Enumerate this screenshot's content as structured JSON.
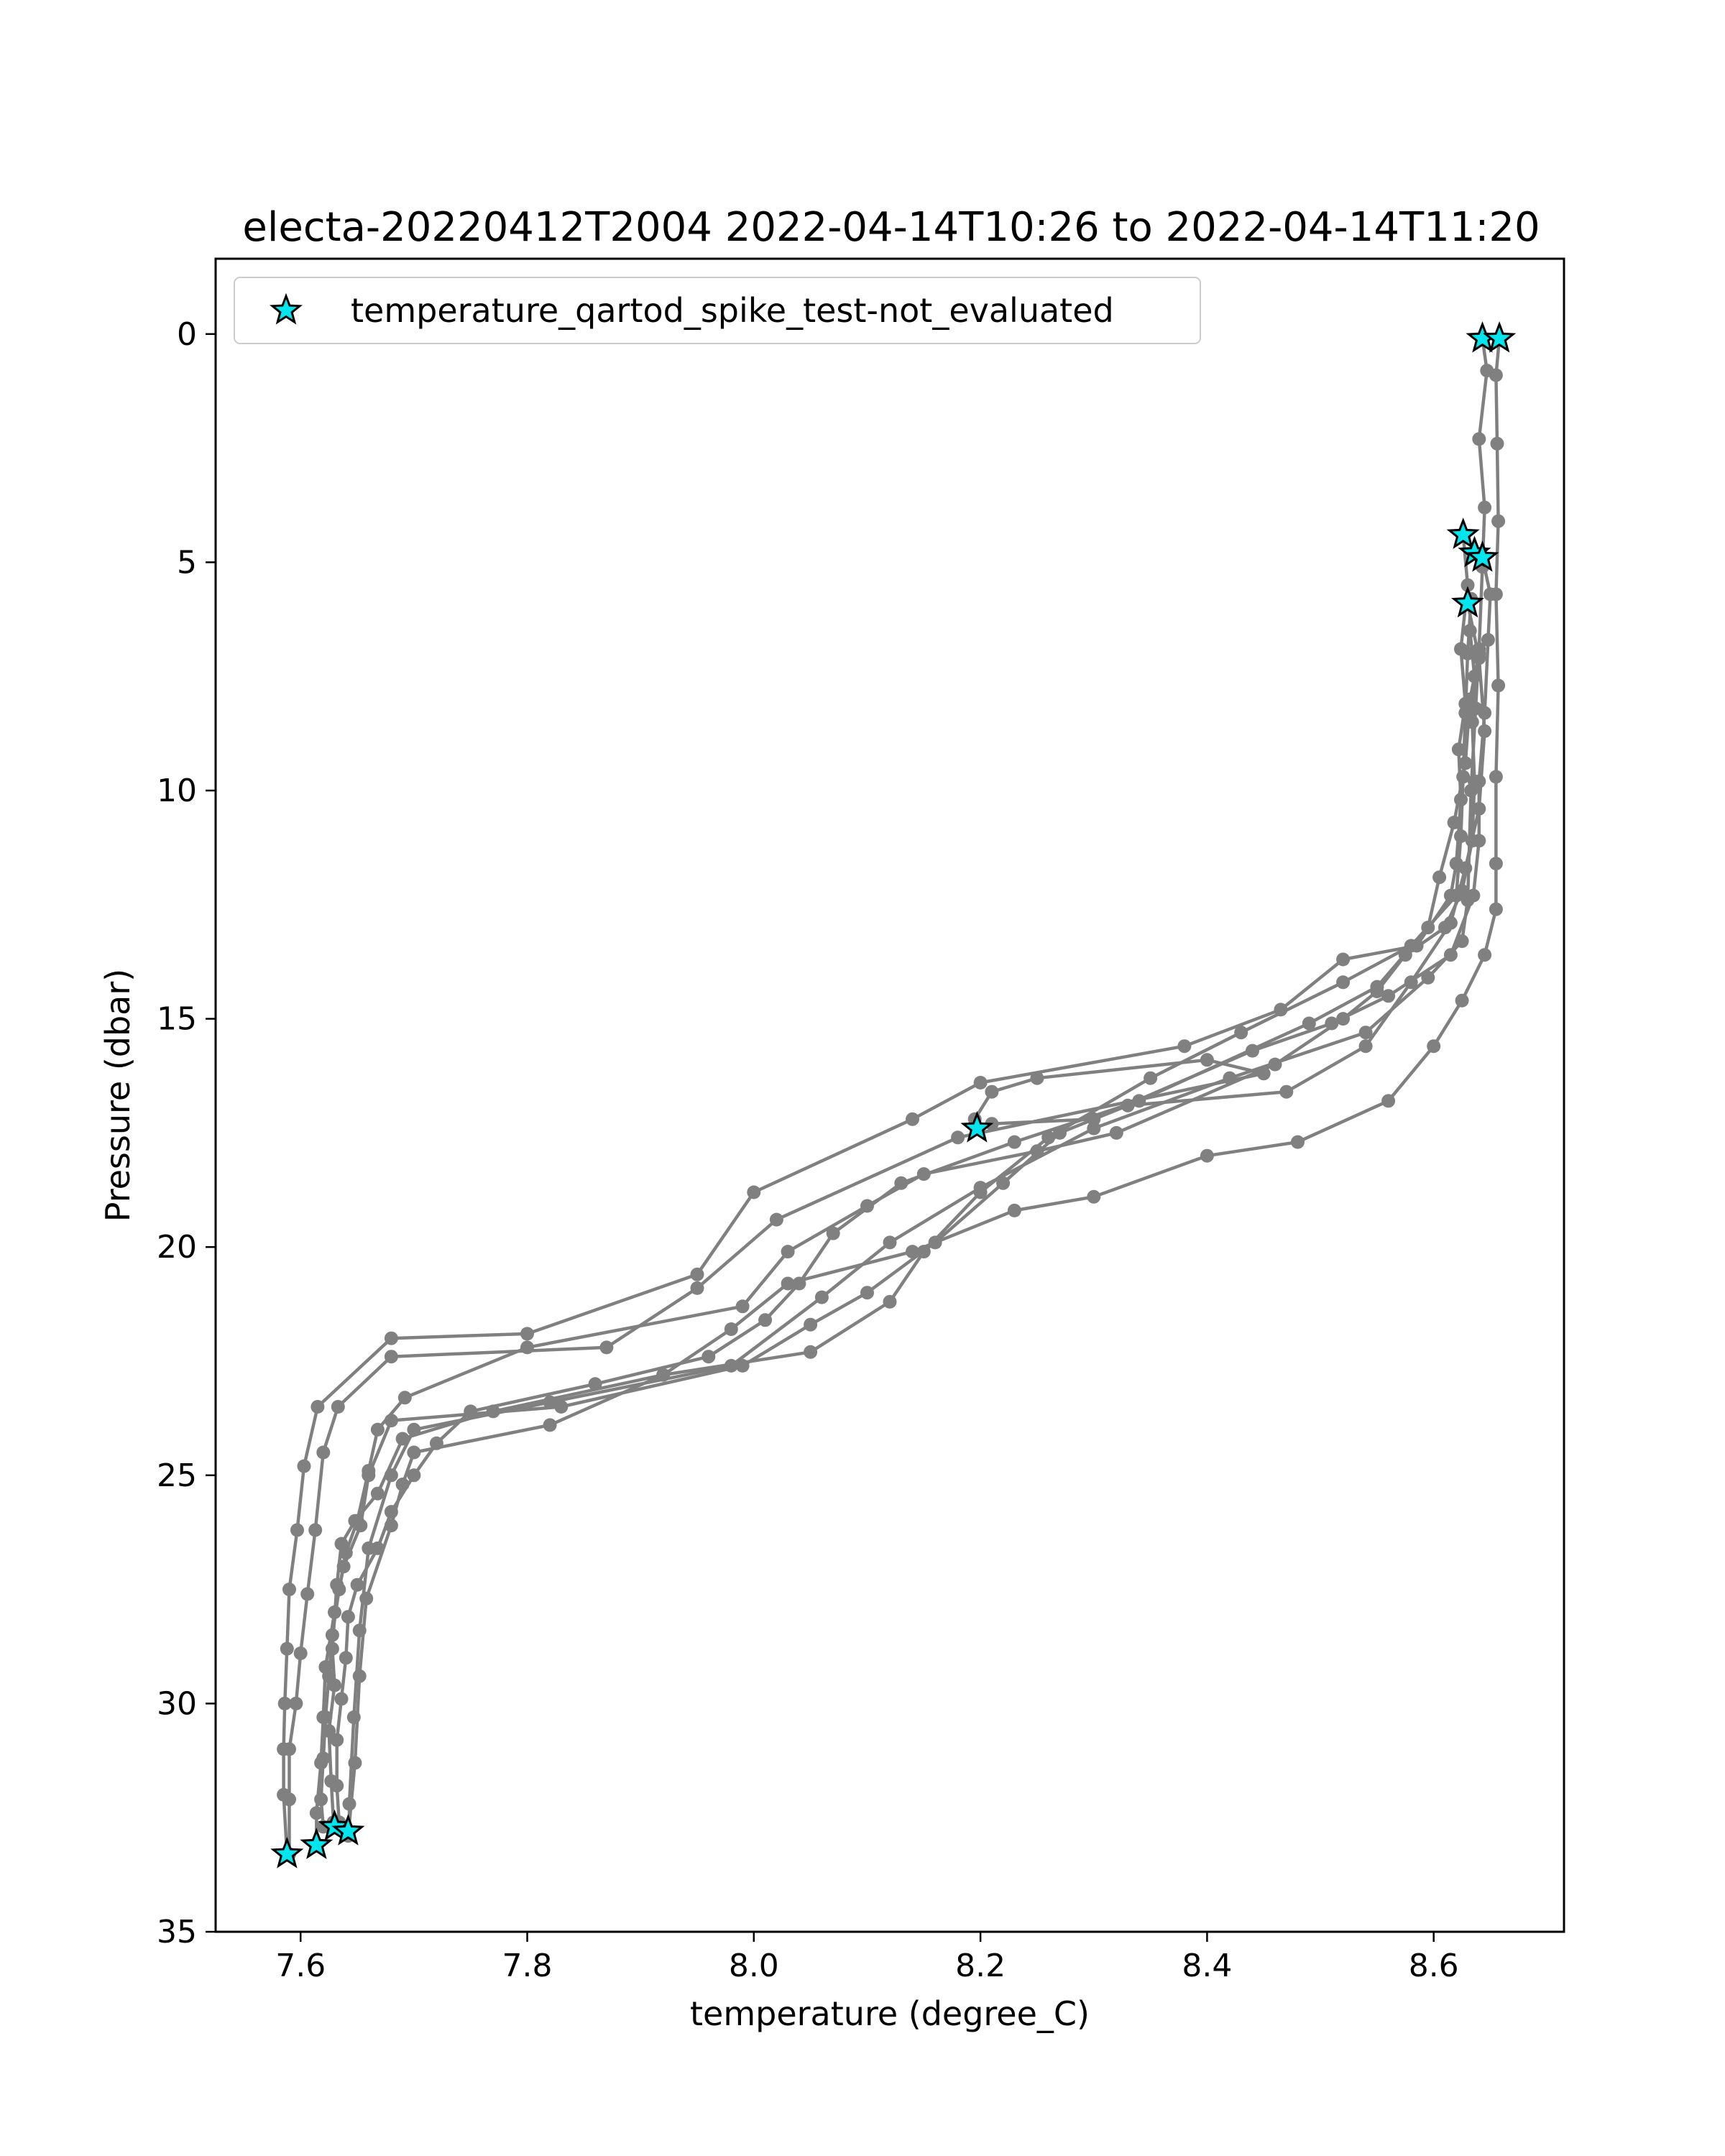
{
  "chart_data": {
    "type": "line",
    "title": "electa-20220412T2004 2022-04-14T10:26 to 2022-04-14T11:20",
    "xlabel": "temperature (degree_C)",
    "ylabel": "Pressure (dbar)",
    "xlim": [
      7.525,
      8.715
    ],
    "ylim": [
      35,
      -1.65
    ],
    "y_inverted": true,
    "grid": false,
    "legend_position": "upper left",
    "x_ticks": [
      7.6,
      7.8,
      8.0,
      8.2,
      8.4,
      8.6
    ],
    "x_tick_labels": [
      "7.6",
      "7.8",
      "8.0",
      "8.2",
      "8.4",
      "8.6"
    ],
    "y_ticks": [
      0,
      5,
      10,
      15,
      20,
      25,
      30,
      35
    ],
    "y_tick_labels": [
      "0",
      "5",
      "10",
      "15",
      "20",
      "25",
      "30",
      "35"
    ],
    "colors": {
      "profile_line": "#808080",
      "flag_marker": "#00e5ee",
      "flag_edge": "#000000"
    },
    "series": [
      {
        "role": "profile",
        "points": [
          [
            8.643,
            0.1
          ],
          [
            8.647,
            0.8
          ],
          [
            8.64,
            2.3
          ],
          [
            8.645,
            3.8
          ],
          [
            8.643,
            5.1
          ],
          [
            8.64,
            6.9
          ],
          [
            8.637,
            8.2
          ],
          [
            8.633,
            10.0
          ],
          [
            8.63,
            12.4
          ],
          [
            8.625,
            13.3
          ],
          [
            8.595,
            14.1
          ],
          [
            8.54,
            15.3
          ],
          [
            8.42,
            16.3
          ],
          [
            8.3,
            17.4
          ],
          [
            8.2,
            18.7
          ],
          [
            8.12,
            19.9
          ],
          [
            8.06,
            21.1
          ],
          [
            7.98,
            22.6
          ],
          [
            7.82,
            23.4
          ],
          [
            7.7,
            24.0
          ],
          [
            7.68,
            25.0
          ],
          [
            7.66,
            26.6
          ],
          [
            7.652,
            28.4
          ],
          [
            7.647,
            30.3
          ],
          [
            7.643,
            32.2
          ],
          [
            7.643,
            32.8
          ]
        ]
      },
      {
        "role": "profile",
        "points": [
          [
            8.658,
            0.1
          ],
          [
            8.655,
            0.9
          ],
          [
            8.656,
            2.4
          ],
          [
            8.657,
            4.1
          ],
          [
            8.655,
            5.7
          ],
          [
            8.657,
            7.7
          ],
          [
            8.655,
            9.7
          ],
          [
            8.655,
            11.6
          ],
          [
            8.655,
            12.6
          ],
          [
            8.645,
            13.6
          ],
          [
            8.625,
            14.6
          ],
          [
            8.6,
            15.6
          ],
          [
            8.56,
            16.8
          ],
          [
            8.48,
            17.7
          ],
          [
            8.4,
            18.0
          ],
          [
            8.3,
            18.9
          ],
          [
            8.23,
            19.2
          ],
          [
            8.14,
            20.1
          ],
          [
            8.03,
            20.8
          ],
          [
            7.98,
            21.8
          ],
          [
            7.92,
            22.8
          ],
          [
            7.82,
            23.9
          ],
          [
            7.7,
            24.5
          ],
          [
            7.69,
            25.2
          ],
          [
            7.68,
            26.1
          ],
          [
            7.658,
            27.7
          ],
          [
            7.652,
            29.4
          ],
          [
            7.648,
            31.3
          ],
          [
            7.642,
            32.9
          ]
        ]
      },
      {
        "role": "profile",
        "points": [
          [
            8.626,
            4.4
          ],
          [
            8.63,
            5.5
          ],
          [
            8.624,
            6.9
          ],
          [
            8.628,
            8.1
          ],
          [
            8.622,
            9.1
          ],
          [
            8.624,
            10.2
          ],
          [
            8.62,
            11.6
          ],
          [
            8.615,
            12.3
          ],
          [
            8.585,
            13.4
          ],
          [
            8.52,
            13.7
          ],
          [
            8.465,
            14.8
          ],
          [
            8.38,
            15.6
          ],
          [
            8.2,
            16.4
          ],
          [
            8.14,
            17.2
          ],
          [
            8.0,
            18.8
          ],
          [
            7.95,
            20.6
          ],
          [
            7.8,
            21.9
          ],
          [
            7.68,
            22.0
          ],
          [
            7.615,
            23.5
          ],
          [
            7.603,
            24.8
          ],
          [
            7.597,
            26.2
          ],
          [
            7.59,
            27.5
          ],
          [
            7.588,
            28.8
          ],
          [
            7.586,
            30.0
          ],
          [
            7.585,
            31.0
          ],
          [
            7.585,
            32.0
          ],
          [
            7.588,
            33.3
          ]
        ]
      },
      {
        "role": "profile",
        "points": [
          [
            8.643,
            4.9
          ],
          [
            8.65,
            5.7
          ],
          [
            8.648,
            6.7
          ],
          [
            8.645,
            8.3
          ],
          [
            8.64,
            9.8
          ],
          [
            8.64,
            11.1
          ],
          [
            8.635,
            12.3
          ],
          [
            8.615,
            13.6
          ],
          [
            8.56,
            14.5
          ],
          [
            8.51,
            15.1
          ],
          [
            8.44,
            15.7
          ],
          [
            8.3,
            17.2
          ],
          [
            8.21,
            17.3
          ],
          [
            8.197,
            17.4
          ],
          [
            8.195,
            17.2
          ],
          [
            8.21,
            16.6
          ],
          [
            8.25,
            16.3
          ],
          [
            8.4,
            15.9
          ],
          [
            8.45,
            16.2
          ],
          [
            8.18,
            17.6
          ],
          [
            8.02,
            19.4
          ],
          [
            7.95,
            20.9
          ],
          [
            7.87,
            22.2
          ],
          [
            7.68,
            22.4
          ],
          [
            7.633,
            23.5
          ],
          [
            7.62,
            24.5
          ],
          [
            7.613,
            26.2
          ],
          [
            7.606,
            27.6
          ],
          [
            7.6,
            28.9
          ],
          [
            7.596,
            30.0
          ],
          [
            7.59,
            31.0
          ],
          [
            7.59,
            32.1
          ],
          [
            7.59,
            33.3
          ]
        ]
      },
      {
        "role": "profile",
        "points": [
          [
            8.633,
            5.8
          ],
          [
            8.63,
            7.0
          ],
          [
            8.628,
            8.3
          ],
          [
            8.626,
            9.7
          ],
          [
            8.624,
            11.0
          ],
          [
            8.62,
            12.3
          ],
          [
            8.58,
            13.4
          ],
          [
            8.52,
            14.2
          ],
          [
            8.43,
            15.3
          ],
          [
            8.35,
            16.3
          ],
          [
            8.26,
            17.6
          ],
          [
            8.2,
            18.8
          ],
          [
            8.15,
            20.1
          ],
          [
            8.12,
            21.2
          ],
          [
            8.05,
            22.3
          ],
          [
            7.92,
            22.8
          ],
          [
            7.77,
            23.6
          ],
          [
            7.69,
            24.2
          ],
          [
            7.668,
            25.4
          ],
          [
            7.648,
            26.0
          ],
          [
            7.636,
            26.5
          ],
          [
            7.632,
            27.4
          ],
          [
            7.628,
            28.8
          ],
          [
            7.63,
            29.6
          ],
          [
            7.625,
            30.6
          ],
          [
            7.627,
            31.7
          ],
          [
            7.629,
            32.6
          ]
        ]
      },
      {
        "role": "profile",
        "points": [
          [
            8.63,
            5.9
          ],
          [
            8.64,
            7.1
          ],
          [
            8.645,
            8.7
          ],
          [
            8.64,
            10.4
          ],
          [
            8.628,
            11.7
          ],
          [
            8.615,
            12.9
          ],
          [
            8.58,
            14.2
          ],
          [
            8.54,
            15.6
          ],
          [
            8.47,
            16.6
          ],
          [
            8.33,
            16.9
          ],
          [
            8.27,
            17.5
          ],
          [
            8.22,
            18.6
          ],
          [
            8.16,
            19.9
          ],
          [
            8.1,
            21.0
          ],
          [
            8.05,
            21.7
          ],
          [
            7.99,
            22.6
          ],
          [
            7.83,
            23.5
          ],
          [
            7.68,
            23.8
          ],
          [
            7.66,
            25.0
          ],
          [
            7.653,
            26.1
          ],
          [
            7.638,
            27.0
          ],
          [
            7.63,
            28.0
          ],
          [
            7.622,
            29.2
          ],
          [
            7.62,
            30.3
          ],
          [
            7.618,
            31.3
          ],
          [
            7.614,
            32.4
          ],
          [
            7.614,
            33.1
          ]
        ]
      },
      {
        "role": "profile",
        "points": [
          [
            8.632,
            6.5
          ],
          [
            8.636,
            7.5
          ],
          [
            8.634,
            8.5
          ],
          [
            8.636,
            9.8
          ],
          [
            8.634,
            11.1
          ],
          [
            8.625,
            12.2
          ],
          [
            8.61,
            13.0
          ],
          [
            8.575,
            13.6
          ],
          [
            8.55,
            14.4
          ],
          [
            8.52,
            15.0
          ],
          [
            8.46,
            16.0
          ],
          [
            8.32,
            17.5
          ],
          [
            8.25,
            17.9
          ],
          [
            8.15,
            18.4
          ],
          [
            8.1,
            19.1
          ],
          [
            8.03,
            20.1
          ],
          [
            7.99,
            21.3
          ],
          [
            7.8,
            22.2
          ],
          [
            7.692,
            23.3
          ],
          [
            7.668,
            24.0
          ],
          [
            7.66,
            24.9
          ],
          [
            7.65,
            26.0
          ],
          [
            7.64,
            26.7
          ],
          [
            7.634,
            27.5
          ],
          [
            7.628,
            28.5
          ],
          [
            7.625,
            29.4
          ],
          [
            7.622,
            30.3
          ],
          [
            7.62,
            31.2
          ],
          [
            7.618,
            32.1
          ],
          [
            7.62,
            32.7
          ]
        ]
      },
      {
        "role": "profile",
        "points": [
          [
            8.64,
            7.0
          ],
          [
            8.632,
            8.0
          ],
          [
            8.628,
            9.4
          ],
          [
            8.618,
            10.7
          ],
          [
            8.605,
            11.9
          ],
          [
            8.595,
            13.0
          ],
          [
            8.55,
            14.3
          ],
          [
            8.49,
            15.1
          ],
          [
            8.34,
            16.8
          ],
          [
            8.23,
            17.7
          ],
          [
            8.13,
            18.6
          ],
          [
            8.07,
            19.7
          ],
          [
            8.04,
            20.8
          ],
          [
            8.01,
            21.6
          ],
          [
            7.96,
            22.4
          ],
          [
            7.86,
            23.0
          ],
          [
            7.75,
            23.6
          ],
          [
            7.72,
            24.3
          ],
          [
            7.7,
            25.0
          ],
          [
            7.68,
            25.8
          ],
          [
            7.668,
            26.6
          ],
          [
            7.65,
            27.4
          ],
          [
            7.642,
            28.1
          ],
          [
            7.64,
            29.0
          ],
          [
            7.636,
            29.9
          ],
          [
            7.632,
            30.8
          ],
          [
            7.632,
            31.8
          ],
          [
            7.634,
            32.6
          ]
        ]
      }
    ],
    "flagged_series": {
      "name": "temperature_qartod_spike_test-not_evaluated",
      "marker": "star",
      "points": [
        [
          8.643,
          0.1
        ],
        [
          8.658,
          0.1
        ],
        [
          8.626,
          4.4
        ],
        [
          8.636,
          4.8
        ],
        [
          8.643,
          4.9
        ],
        [
          8.63,
          5.9
        ],
        [
          8.197,
          17.4
        ],
        [
          7.63,
          32.7
        ],
        [
          7.642,
          32.8
        ],
        [
          7.614,
          33.1
        ],
        [
          7.588,
          33.3
        ]
      ]
    }
  }
}
